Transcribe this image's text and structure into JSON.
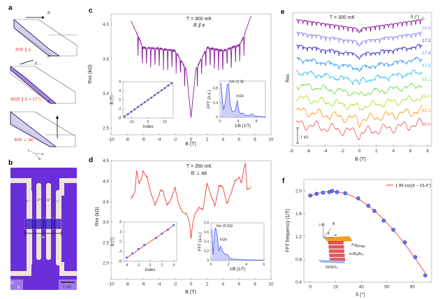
{
  "panels": {
    "a": "a",
    "b": "b",
    "c": "c",
    "d": "d",
    "e": "e",
    "f": "f"
  },
  "panel_a": {
    "field_label": "B",
    "delta_symbol": "δ",
    "labels": [
      "Φ/B ∥ a",
      "Φ/(B ∥ δ = 17°)",
      "Φ/B ⊥ ab"
    ],
    "axes": {
      "c": "c",
      "a": "a",
      "b": "b"
    }
  },
  "panel_b": {
    "contacts": [
      "I⁺",
      "V⁺",
      "V⁻",
      "I⁻"
    ],
    "width_label": "w",
    "scale_bar": "1 μm",
    "axes": {
      "a": "a",
      "b": "b"
    },
    "colors": {
      "substrate": "#6a2fd8",
      "metal": "#efe4dc",
      "flake": "#3a1ac0"
    }
  },
  "chart_data": [
    {
      "id": "c",
      "type": "line",
      "annotation": [
        "T = 300 mK",
        "B ∥ a"
      ],
      "xlabel": "B (T)",
      "ylabel": "Rxx (kΩ)",
      "xlim": [
        -10,
        10
      ],
      "ylim": [
        2.4,
        4.15
      ],
      "xticks": [
        -10,
        -8,
        -6,
        -4,
        -2,
        0,
        2,
        4,
        6,
        8,
        10
      ],
      "yticks": [
        2.5,
        3.0,
        3.5,
        4.0
      ],
      "color": "#8a1a9b",
      "envelope": {
        "x": [
          -7.5,
          -6.5,
          -6,
          -4,
          -2,
          -0.6,
          0,
          0.6,
          2,
          4,
          6,
          6.5,
          7.5
        ],
        "y": [
          4.05,
          3.8,
          3.66,
          3.65,
          3.62,
          3.35,
          2.65,
          3.35,
          3.66,
          3.62,
          3.7,
          3.8,
          4.12
        ]
      },
      "dip_depth": 0.3,
      "oscillation_period_T": 0.53,
      "insets": [
        {
          "type": "scatter+line",
          "xlabel": "Index",
          "ylabel": "B (T)",
          "xlim": [
            -15,
            15
          ],
          "ylim": [
            -8,
            8
          ],
          "xticks": [
            -10,
            0,
            10
          ],
          "yticks": [
            -8,
            -4,
            0,
            4,
            8
          ],
          "points_x": [
            -14,
            -12,
            -10,
            -8,
            -6,
            -4,
            -2,
            0,
            2,
            4,
            6,
            8,
            10,
            12,
            14
          ],
          "points_y": [
            -7.3,
            -6.3,
            -5.2,
            -4.2,
            -3.1,
            -2.1,
            -1.0,
            0,
            1.0,
            2.1,
            3.1,
            4.2,
            5.2,
            6.3,
            7.3
          ],
          "fit_slope": 0.523
        },
        {
          "type": "area",
          "xlabel": "1/B (1/T)",
          "ylabel": "FFT (a.u.)",
          "xlim": [
            0,
            10
          ],
          "ylim": [
            0,
            1.0
          ],
          "xticks": [
            0,
            4,
            8
          ],
          "yticks": [
            0,
            0.4,
            0.8
          ],
          "x": [
            0.2,
            0.5,
            0.8,
            1.2,
            1.6,
            1.9,
            2.2,
            2.6,
            3,
            3.4,
            3.8,
            4.1,
            4.5,
            5,
            5.5,
            6.5,
            7,
            7.5,
            10
          ],
          "y": [
            0.95,
            0.5,
            0.2,
            0.45,
            0.9,
            0.93,
            0.4,
            0.18,
            0.15,
            0.2,
            0.47,
            0.2,
            0.1,
            0.12,
            0.06,
            0.05,
            0.1,
            0.04,
            0.01
          ],
          "annotations": [
            "h/e (1.9)",
            "h/2e"
          ]
        }
      ]
    },
    {
      "id": "d",
      "type": "line",
      "annotation": [
        "T = 350 mK",
        "B ⊥ ab"
      ],
      "xlabel": "B (T)",
      "ylabel": "Rxx (kΩ)",
      "xlim": [
        -10,
        10
      ],
      "ylim": [
        1.6,
        4.5
      ],
      "xticks": [
        -10,
        -8,
        -6,
        -4,
        -2,
        0,
        2,
        4,
        6,
        8,
        10
      ],
      "yticks": [
        2.0,
        2.5,
        3.0,
        3.5,
        4.0,
        4.5
      ],
      "color": "#e8413c",
      "x": [
        -7.5,
        -7.2,
        -7,
        -6.8,
        -6.5,
        -6.2,
        -6,
        -5.5,
        -5,
        -4.5,
        -4.2,
        -3.8,
        -3.5,
        -3,
        -2.5,
        -2,
        -1.5,
        -1,
        -0.5,
        -0.2,
        0,
        0.2,
        0.5,
        1,
        1.5,
        2,
        2.5,
        3,
        3.5,
        4,
        4.5,
        5,
        5.5,
        6,
        6.3,
        6.6,
        6.8,
        7,
        7.5
      ],
      "y": [
        3.58,
        3.65,
        3.75,
        4.25,
        3.95,
        4.05,
        4.25,
        4.1,
        3.7,
        3.42,
        3.55,
        3.78,
        3.75,
        3.42,
        3.55,
        3.85,
        3.4,
        3.25,
        3.2,
        3.0,
        2.6,
        2.95,
        3.2,
        3.35,
        3.3,
        3.95,
        3.65,
        3.4,
        3.9,
        3.85,
        3.45,
        3.7,
        4.0,
        4.1,
        3.95,
        4.3,
        4.45,
        3.8,
        3.85
      ],
      "insets": [
        {
          "type": "scatter+line",
          "xlabel": "Index",
          "ylabel": "B (T)",
          "xlim": [
            -4.5,
            4.5
          ],
          "ylim": [
            -8,
            8
          ],
          "xticks": [
            -4,
            -2,
            0,
            2,
            4
          ],
          "yticks": [
            -8,
            -4,
            0,
            4,
            8
          ],
          "points_x": [
            -4,
            -3,
            -2,
            -1,
            1,
            2,
            3,
            4
          ],
          "points_y": [
            -6.5,
            -4.8,
            -3.0,
            -1.3,
            1.5,
            3.3,
            4.9,
            6.8
          ],
          "fit_slope": 1.66
        },
        {
          "type": "area",
          "xlabel": "1/B (1/T)",
          "ylabel": "FFT (a.u.)",
          "xlim": [
            0,
            6
          ],
          "ylim": [
            0,
            0.8
          ],
          "xticks": [
            0,
            2,
            4,
            6
          ],
          "yticks": [
            0,
            0.2,
            0.4,
            0.6,
            0.8
          ],
          "x": [
            0.1,
            0.25,
            0.4,
            0.52,
            0.7,
            0.9,
            1.1,
            1.3,
            1.5,
            1.9,
            2.2,
            3,
            4,
            6
          ],
          "y": [
            0.67,
            0.12,
            0.6,
            0.7,
            0.55,
            0.2,
            0.31,
            0.2,
            0.15,
            0.12,
            0.04,
            0.02,
            0.015,
            0.01
          ],
          "annotations": [
            "h/e (0.52)",
            "h/2e"
          ]
        }
      ]
    },
    {
      "id": "e",
      "type": "line",
      "annotation": "T = 300 mK",
      "legend_title": "δ (°)",
      "xlabel": "B (T)",
      "ylabel": "Rxx",
      "xlim": [
        -8,
        8
      ],
      "xticks": [
        -8,
        -6,
        -4,
        -2,
        0,
        2,
        4,
        6,
        8
      ],
      "scale_bar": "1 kΩ",
      "series": [
        {
          "name": "0",
          "color": "#8b1a9b"
        },
        {
          "name": "10.4",
          "color": "#8a86ff"
        },
        {
          "name": "17.2",
          "color": "#3a38c8"
        },
        {
          "name": "27.4",
          "color": "#3c9cff"
        },
        {
          "name": "37.6",
          "color": "#3ec6ee"
        },
        {
          "name": "50.2",
          "color": "#7ee05a"
        },
        {
          "name": "65.0",
          "color": "#b2e23e"
        },
        {
          "name": "82.2",
          "color": "#ff9a22"
        },
        {
          "name": "90.0",
          "color": "#f06262"
        }
      ]
    },
    {
      "id": "f",
      "type": "scatter",
      "xlabel": "δ (°)",
      "ylabel": "FFT frequency (1/T)",
      "xlim": [
        -5,
        95
      ],
      "ylim": [
        0.4,
        2.2
      ],
      "xticks": [
        0,
        20,
        40,
        60,
        80
      ],
      "yticks": [
        0.4,
        0.8,
        1.2,
        1.6,
        2.0
      ],
      "x": [
        0,
        5,
        10,
        15,
        17.2,
        21,
        27.4,
        37.6,
        45.5,
        50.2,
        57.5,
        65,
        74,
        82.2,
        90
      ],
      "y": [
        1.92,
        1.95,
        1.97,
        1.98,
        2.0,
        1.98,
        1.96,
        1.87,
        1.74,
        1.65,
        1.48,
        1.32,
        1.1,
        0.84,
        0.52
      ],
      "fit": {
        "label": "1.99 cos(δ − 16.4°)",
        "amplitude": 1.99,
        "phase_deg": 16.4,
        "color": "#e8413c"
      },
      "point_color": "#2f3fe0",
      "legend_position": "top-right",
      "inset_labels": {
        "perp": "⊥ab",
        "field": "B",
        "delta": "δ",
        "a": "a",
        "polymer": "Polymer",
        "crystal": "α-Bi₄Br₄",
        "substrate": "Si/SiO₂"
      }
    }
  ]
}
